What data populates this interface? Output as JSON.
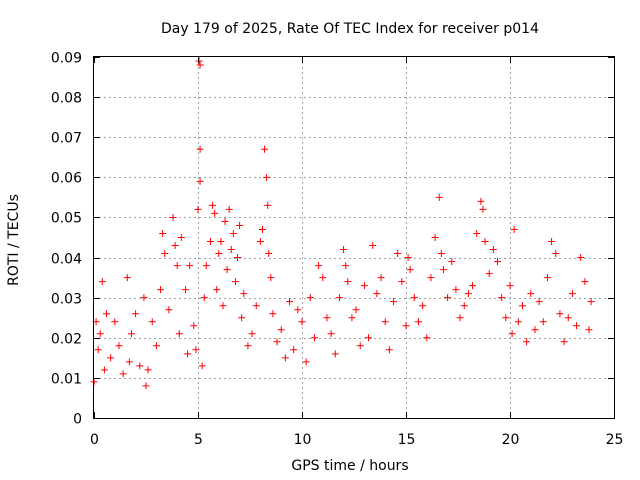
{
  "chart_data": {
    "type": "scatter",
    "title": "Day 179 of 2025, Rate Of TEC Index for receiver p014",
    "xlabel": "GPS time / hours",
    "ylabel": "ROTI / TECUs",
    "xlim": [
      0,
      25
    ],
    "ylim": [
      0,
      0.09
    ],
    "x_ticks": [
      0,
      5,
      10,
      15,
      20,
      25
    ],
    "x_tick_labels": [
      "0",
      "5",
      "10",
      "15",
      "20",
      "25"
    ],
    "y_ticks": [
      0,
      0.01,
      0.02,
      0.03,
      0.04,
      0.05,
      0.06,
      0.07,
      0.08,
      0.09
    ],
    "y_tick_labels": [
      "0",
      "0.01",
      "0.02",
      "0.03",
      "0.04",
      "0.05",
      "0.06",
      "0.07",
      "0.08",
      "0.09"
    ],
    "grid": true,
    "marker": "+",
    "marker_color": "#ff0000",
    "series": [
      {
        "name": "ROTI",
        "color": "#ff0000",
        "x": [
          0.0,
          0.1,
          0.2,
          0.3,
          0.4,
          0.5,
          0.6,
          0.8,
          1.0,
          1.2,
          1.4,
          1.6,
          1.7,
          1.8,
          2.0,
          2.2,
          2.4,
          2.5,
          2.6,
          2.8,
          3.0,
          3.2,
          3.3,
          3.4,
          3.6,
          3.8,
          3.9,
          4.0,
          4.1,
          4.2,
          4.4,
          4.5,
          4.6,
          4.8,
          4.9,
          5.0,
          5.05,
          5.1,
          5.1,
          5.1,
          5.2,
          5.3,
          5.4,
          5.6,
          5.7,
          5.8,
          5.9,
          6.0,
          6.1,
          6.2,
          6.3,
          6.4,
          6.5,
          6.6,
          6.7,
          6.8,
          6.9,
          7.0,
          7.1,
          7.2,
          7.4,
          7.6,
          7.8,
          8.0,
          8.1,
          8.2,
          8.3,
          8.35,
          8.4,
          8.5,
          8.6,
          8.8,
          9.0,
          9.2,
          9.4,
          9.6,
          9.8,
          10.0,
          10.2,
          10.4,
          10.6,
          10.8,
          11.0,
          11.2,
          11.4,
          11.6,
          11.8,
          12.0,
          12.1,
          12.2,
          12.4,
          12.6,
          12.8,
          13.0,
          13.2,
          13.4,
          13.6,
          13.8,
          14.0,
          14.2,
          14.4,
          14.6,
          14.8,
          15.0,
          15.1,
          15.2,
          15.4,
          15.6,
          15.8,
          16.0,
          16.2,
          16.4,
          16.6,
          16.7,
          16.8,
          17.0,
          17.2,
          17.4,
          17.6,
          17.8,
          18.0,
          18.2,
          18.4,
          18.6,
          18.7,
          18.8,
          19.0,
          19.2,
          19.4,
          19.6,
          19.8,
          20.0,
          20.1,
          20.2,
          20.4,
          20.6,
          20.8,
          21.0,
          21.2,
          21.4,
          21.6,
          21.8,
          22.0,
          22.2,
          22.4,
          22.6,
          22.8,
          23.0,
          23.2,
          23.4,
          23.6,
          23.8,
          23.9
        ],
        "y": [
          0.009,
          0.024,
          0.017,
          0.021,
          0.034,
          0.012,
          0.026,
          0.015,
          0.024,
          0.018,
          0.011,
          0.035,
          0.014,
          0.021,
          0.026,
          0.013,
          0.03,
          0.008,
          0.012,
          0.024,
          0.018,
          0.032,
          0.046,
          0.041,
          0.027,
          0.05,
          0.043,
          0.038,
          0.021,
          0.045,
          0.032,
          0.016,
          0.038,
          0.023,
          0.017,
          0.052,
          0.089,
          0.067,
          0.059,
          0.088,
          0.013,
          0.03,
          0.038,
          0.044,
          0.053,
          0.051,
          0.032,
          0.041,
          0.044,
          0.028,
          0.049,
          0.037,
          0.052,
          0.042,
          0.046,
          0.034,
          0.04,
          0.048,
          0.025,
          0.031,
          0.018,
          0.021,
          0.028,
          0.044,
          0.047,
          0.067,
          0.06,
          0.053,
          0.041,
          0.035,
          0.026,
          0.019,
          0.022,
          0.015,
          0.029,
          0.017,
          0.027,
          0.024,
          0.014,
          0.03,
          0.02,
          0.038,
          0.035,
          0.025,
          0.021,
          0.016,
          0.03,
          0.042,
          0.038,
          0.034,
          0.025,
          0.027,
          0.018,
          0.033,
          0.02,
          0.043,
          0.031,
          0.035,
          0.024,
          0.017,
          0.029,
          0.041,
          0.034,
          0.023,
          0.04,
          0.037,
          0.03,
          0.024,
          0.028,
          0.02,
          0.035,
          0.045,
          0.055,
          0.041,
          0.037,
          0.03,
          0.039,
          0.032,
          0.025,
          0.028,
          0.031,
          0.033,
          0.046,
          0.054,
          0.052,
          0.044,
          0.036,
          0.042,
          0.039,
          0.03,
          0.025,
          0.033,
          0.021,
          0.047,
          0.024,
          0.028,
          0.019,
          0.031,
          0.022,
          0.029,
          0.024,
          0.035,
          0.044,
          0.041,
          0.026,
          0.019,
          0.025,
          0.031,
          0.023,
          0.04,
          0.034,
          0.022,
          0.029
        ]
      }
    ]
  }
}
